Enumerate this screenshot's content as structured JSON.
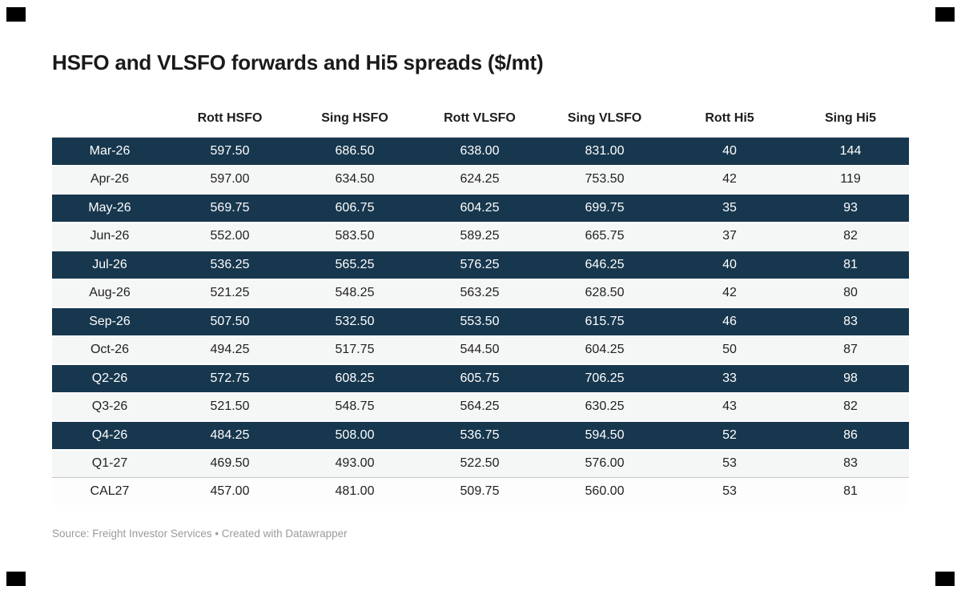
{
  "title": "HSFO and VLSFO forwards and Hi5 spreads ($/mt)",
  "footer": {
    "source_text": "Source: Freight Investor Services • Created with Datawrapper"
  },
  "colors": {
    "dark_row_bg": "#17374e",
    "dark_row_text": "#ffffff",
    "light_row_bg": "#f5f6f6",
    "header_text": "#1d1d1d",
    "source_text": "#9b9b9b",
    "corner_marks": "#000000"
  },
  "table": {
    "corner_header": "",
    "columns": [
      "Rott HSFO",
      "Sing HSFO",
      "Rott VLSFO",
      "Sing VLSFO",
      "Rott Hi5",
      "Sing Hi5"
    ],
    "rows": [
      {
        "label": "Mar-26",
        "style": "dark",
        "separator": false,
        "values": [
          "597.50",
          "686.50",
          "638.00",
          "831.00",
          "40",
          "144"
        ]
      },
      {
        "label": "Apr-26",
        "style": "light",
        "separator": false,
        "values": [
          "597.00",
          "634.50",
          "624.25",
          "753.50",
          "42",
          "119"
        ]
      },
      {
        "label": "May-26",
        "style": "dark",
        "separator": false,
        "values": [
          "569.75",
          "606.75",
          "604.25",
          "699.75",
          "35",
          "93"
        ]
      },
      {
        "label": "Jun-26",
        "style": "light",
        "separator": false,
        "values": [
          "552.00",
          "583.50",
          "589.25",
          "665.75",
          "37",
          "82"
        ]
      },
      {
        "label": "Jul-26",
        "style": "dark",
        "separator": false,
        "values": [
          "536.25",
          "565.25",
          "576.25",
          "646.25",
          "40",
          "81"
        ]
      },
      {
        "label": "Aug-26",
        "style": "light",
        "separator": false,
        "values": [
          "521.25",
          "548.25",
          "563.25",
          "628.50",
          "42",
          "80"
        ]
      },
      {
        "label": "Sep-26",
        "style": "dark",
        "separator": false,
        "values": [
          "507.50",
          "532.50",
          "553.50",
          "615.75",
          "46",
          "83"
        ]
      },
      {
        "label": "Oct-26",
        "style": "light",
        "separator": false,
        "values": [
          "494.25",
          "517.75",
          "544.50",
          "604.25",
          "50",
          "87"
        ]
      },
      {
        "label": "Q2-26",
        "style": "dark",
        "separator": false,
        "values": [
          "572.75",
          "608.25",
          "605.75",
          "706.25",
          "33",
          "98"
        ]
      },
      {
        "label": "Q3-26",
        "style": "light",
        "separator": false,
        "values": [
          "521.50",
          "548.75",
          "564.25",
          "630.25",
          "43",
          "82"
        ]
      },
      {
        "label": "Q4-26",
        "style": "dark",
        "separator": false,
        "values": [
          "484.25",
          "508.00",
          "536.75",
          "594.50",
          "52",
          "86"
        ]
      },
      {
        "label": "Q1-27",
        "style": "light",
        "separator": true,
        "values": [
          "469.50",
          "493.00",
          "522.50",
          "576.00",
          "53",
          "83"
        ]
      },
      {
        "label": "CAL27",
        "style": "white",
        "separator": false,
        "values": [
          "457.00",
          "481.00",
          "509.75",
          "560.00",
          "53",
          "81"
        ]
      }
    ]
  },
  "chart_data": {
    "type": "table",
    "title": "HSFO and VLSFO forwards and Hi5 spreads ($/mt)",
    "columns": [
      "",
      "Rott HSFO",
      "Sing HSFO",
      "Rott VLSFO",
      "Sing VLSFO",
      "Rott Hi5",
      "Sing Hi5"
    ],
    "rows": [
      [
        "Mar-26",
        597.5,
        686.5,
        638.0,
        831.0,
        40,
        144
      ],
      [
        "Apr-26",
        597.0,
        634.5,
        624.25,
        753.5,
        42,
        119
      ],
      [
        "May-26",
        569.75,
        606.75,
        604.25,
        699.75,
        35,
        93
      ],
      [
        "Jun-26",
        552.0,
        583.5,
        589.25,
        665.75,
        37,
        82
      ],
      [
        "Jul-26",
        536.25,
        565.25,
        576.25,
        646.25,
        40,
        81
      ],
      [
        "Aug-26",
        521.25,
        548.25,
        563.25,
        628.5,
        42,
        80
      ],
      [
        "Sep-26",
        507.5,
        532.5,
        553.5,
        615.75,
        46,
        83
      ],
      [
        "Oct-26",
        494.25,
        517.75,
        544.5,
        604.25,
        50,
        87
      ],
      [
        "Q2-26",
        572.75,
        608.25,
        605.75,
        706.25,
        33,
        98
      ],
      [
        "Q3-26",
        521.5,
        548.75,
        564.25,
        630.25,
        43,
        82
      ],
      [
        "Q4-26",
        484.25,
        508.0,
        536.75,
        594.5,
        52,
        86
      ],
      [
        "Q1-27",
        469.5,
        493.0,
        522.5,
        576.0,
        53,
        83
      ],
      [
        "CAL27",
        457.0,
        481.0,
        509.75,
        560.0,
        53,
        81
      ]
    ],
    "source": "Freight Investor Services",
    "created_with": "Datawrapper",
    "legend_position": "none",
    "grid": false
  }
}
